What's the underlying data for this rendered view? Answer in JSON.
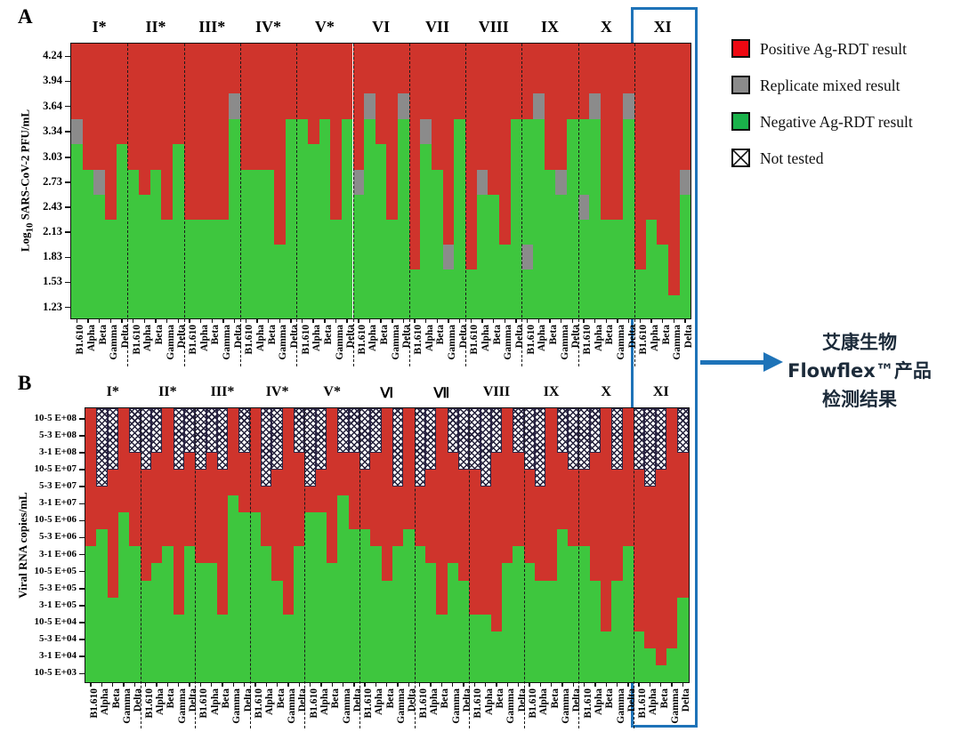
{
  "colors": {
    "positive_red": "#cf342c",
    "legend_red": "#ee0812",
    "mixed_gray": "#8b8b8b",
    "negative_green": "#3ec63e",
    "legend_green": "#1ab24b",
    "hatch_line": "#23203a",
    "highlight_blue": "#1e73b8",
    "annotation_text": "#1c2b3a"
  },
  "legend": {
    "items": [
      {
        "label": "Positive Ag-RDT result",
        "swatch": "red"
      },
      {
        "label": "Replicate mixed result",
        "swatch": "gray"
      },
      {
        "label": "Negative Ag-RDT result",
        "swatch": "green"
      },
      {
        "label": "Not tested",
        "swatch": "hatch"
      }
    ]
  },
  "annotation": {
    "lines": [
      "艾康生物",
      "Flowflex™产品",
      "检测结果"
    ],
    "arrow_color": "#1e73b8",
    "box_color": "#1e73b8"
  },
  "chart_data": [
    {
      "type": "bar",
      "subtype": "stacked-result-matrix",
      "panel_label": "A",
      "ylabel_prefix": "Log",
      "ylabel_sub": "10",
      "ylabel_suffix": " SARS-CoV-2 PFU/mL",
      "y_ticks": [
        "4.24",
        "3.94",
        "3.64",
        "3.34",
        "3.03",
        "2.73",
        "2.43",
        "2.13",
        "1.83",
        "1.53",
        "1.23"
      ],
      "y_tick_values": [
        4.24,
        3.94,
        3.64,
        3.34,
        3.03,
        2.73,
        2.43,
        2.13,
        1.83,
        1.53,
        1.23
      ],
      "ylim": [
        1.1,
        4.39
      ],
      "groups": [
        "I*",
        "II*",
        "III*",
        "IV*",
        "V*",
        "VI",
        "VII",
        "VIII",
        "IX",
        "X",
        "XI"
      ],
      "variants": [
        "B1.610",
        "Alpha",
        "Beta",
        "Gamma",
        "Delta"
      ],
      "legend_position": "upper right outside",
      "grid": false,
      "bars_note": "green_to = top of negative(green) zone in log10 PFU/mL; gray = [lo,hi] replicate-mixed zone; red fills above to plot top",
      "bars": [
        [
          {
            "green_to": 3.19,
            "gray": [
              3.19,
              3.49
            ]
          },
          {
            "green_to": 2.88
          },
          {
            "green_to": 2.58,
            "gray": [
              2.58,
              2.88
            ]
          },
          {
            "green_to": 2.28
          },
          {
            "green_to": 3.19
          }
        ],
        [
          {
            "green_to": 2.88
          },
          {
            "green_to": 2.58
          },
          {
            "green_to": 2.88
          },
          {
            "green_to": 2.28
          },
          {
            "green_to": 3.19
          }
        ],
        [
          {
            "green_to": 2.28
          },
          {
            "green_to": 2.28
          },
          {
            "green_to": 2.28
          },
          {
            "green_to": 2.28
          },
          {
            "green_to": 3.49,
            "gray": [
              3.49,
              3.79
            ]
          }
        ],
        [
          {
            "green_to": 2.88
          },
          {
            "green_to": 2.88
          },
          {
            "green_to": 2.88
          },
          {
            "green_to": 1.98
          },
          {
            "green_to": 3.49
          }
        ],
        [
          {
            "green_to": 3.49
          },
          {
            "green_to": 3.19
          },
          {
            "green_to": 3.49
          },
          {
            "green_to": 2.28
          },
          {
            "green_to": 3.49
          }
        ],
        [
          {
            "green_to": 2.58,
            "gray": [
              2.58,
              2.88
            ]
          },
          {
            "green_to": 3.49,
            "gray": [
              3.49,
              3.79
            ]
          },
          {
            "green_to": 3.19
          },
          {
            "green_to": 2.28
          },
          {
            "green_to": 3.49,
            "gray": [
              3.49,
              3.79
            ]
          }
        ],
        [
          {
            "green_to": 1.68
          },
          {
            "green_to": 3.19,
            "gray": [
              3.19,
              3.49
            ]
          },
          {
            "green_to": 2.88
          },
          {
            "green_to": 1.68,
            "gray": [
              1.68,
              1.98
            ]
          },
          {
            "green_to": 3.49
          }
        ],
        [
          {
            "green_to": 1.68
          },
          {
            "green_to": 2.58,
            "gray": [
              2.58,
              2.88
            ]
          },
          {
            "green_to": 2.58
          },
          {
            "green_to": 1.98
          },
          {
            "green_to": 3.49
          }
        ],
        [
          {
            "green_to": 3.49,
            "gray": [
              1.68,
              1.98
            ]
          },
          {
            "green_to": 3.49,
            "gray": [
              3.49,
              3.79
            ]
          },
          {
            "green_to": 2.88
          },
          {
            "green_to": 2.58,
            "gray": [
              2.58,
              2.88
            ]
          },
          {
            "green_to": 3.49
          }
        ],
        [
          {
            "green_to": 3.49,
            "gray": [
              2.28,
              2.58
            ]
          },
          {
            "green_to": 3.49,
            "gray": [
              3.49,
              3.79
            ]
          },
          {
            "green_to": 2.28
          },
          {
            "green_to": 2.28
          },
          {
            "green_to": 3.49,
            "gray": [
              3.49,
              3.79
            ]
          }
        ],
        [
          {
            "green_to": 1.68
          },
          {
            "green_to": 2.28
          },
          {
            "green_to": 1.98
          },
          {
            "green_to": 1.38
          },
          {
            "green_to": 2.58,
            "gray": [
              2.58,
              2.88
            ]
          }
        ]
      ]
    },
    {
      "type": "bar",
      "subtype": "stacked-result-matrix",
      "panel_label": "B",
      "ylabel": "Viral RNA copies/mL",
      "y_ticks": [
        "10-5 E+08",
        "5-3 E+08",
        "3-1 E+08",
        "10-5 E+07",
        "5-3 E+07",
        "3-1 E+07",
        "10-5 E+06",
        "5-3 E+06",
        "3-1 E+06",
        "10-5 E+05",
        "5-3 E+05",
        "3-1 E+05",
        "10-5 E+04",
        "5-3 E+04",
        "3-1 E+04",
        "10-5 E+03"
      ],
      "groups": [
        "I*",
        "II*",
        "III*",
        "IV*",
        "V*",
        "Ⅵ",
        "Ⅶ",
        "VIII",
        "IX",
        "X",
        "XI"
      ],
      "variants": [
        "B1.610",
        "Alpha",
        "Beta",
        "Gamma",
        "Delta"
      ],
      "grid": false,
      "bars_note": "hatch = number of top concentration levels not tested; green_from = index (0-15, top to bottom tick list) of first negative(green) level; red fills between",
      "bars": [
        [
          {
            "hatch": 0,
            "green_from": 8
          },
          {
            "hatch": 5,
            "green_from": 7
          },
          {
            "hatch": 4,
            "green_from": 11
          },
          {
            "hatch": 0,
            "green_from": 6
          },
          {
            "hatch": 3,
            "green_from": 8
          }
        ],
        [
          {
            "hatch": 4,
            "green_from": 10
          },
          {
            "hatch": 3,
            "green_from": 9
          },
          {
            "hatch": 0,
            "green_from": 8
          },
          {
            "hatch": 4,
            "green_from": 12
          },
          {
            "hatch": 3,
            "green_from": 8
          }
        ],
        [
          {
            "hatch": 4,
            "green_from": 9
          },
          {
            "hatch": 3,
            "green_from": 9
          },
          {
            "hatch": 4,
            "green_from": 12
          },
          {
            "hatch": 0,
            "green_from": 5
          },
          {
            "hatch": 3,
            "green_from": 6
          }
        ],
        [
          {
            "hatch": 0,
            "green_from": 6
          },
          {
            "hatch": 5,
            "green_from": 8
          },
          {
            "hatch": 4,
            "green_from": 10
          },
          {
            "hatch": 0,
            "green_from": 12
          },
          {
            "hatch": 3,
            "green_from": 8
          }
        ],
        [
          {
            "hatch": 5,
            "green_from": 6
          },
          {
            "hatch": 4,
            "green_from": 6
          },
          {
            "hatch": 0,
            "green_from": 9
          },
          {
            "hatch": 3,
            "green_from": 5
          },
          {
            "hatch": 3,
            "green_from": 7
          }
        ],
        [
          {
            "hatch": 4,
            "green_from": 7
          },
          {
            "hatch": 3,
            "green_from": 8
          },
          {
            "hatch": 0,
            "green_from": 10
          },
          {
            "hatch": 5,
            "green_from": 8
          },
          {
            "hatch": 0,
            "green_from": 7
          }
        ],
        [
          {
            "hatch": 5,
            "green_from": 8
          },
          {
            "hatch": 4,
            "green_from": 9
          },
          {
            "hatch": 0,
            "green_from": 12
          },
          {
            "hatch": 3,
            "green_from": 9
          },
          {
            "hatch": 4,
            "green_from": 10
          }
        ],
        [
          {
            "hatch": 4,
            "green_from": 12
          },
          {
            "hatch": 5,
            "green_from": 12
          },
          {
            "hatch": 3,
            "green_from": 13
          },
          {
            "hatch": 0,
            "green_from": 9
          },
          {
            "hatch": 3,
            "green_from": 8
          }
        ],
        [
          {
            "hatch": 4,
            "green_from": 9
          },
          {
            "hatch": 5,
            "green_from": 10
          },
          {
            "hatch": 0,
            "green_from": 10
          },
          {
            "hatch": 3,
            "green_from": 7
          },
          {
            "hatch": 4,
            "green_from": 8
          }
        ],
        [
          {
            "hatch": 4,
            "green_from": 8
          },
          {
            "hatch": 3,
            "green_from": 10
          },
          {
            "hatch": 0,
            "green_from": 13
          },
          {
            "hatch": 4,
            "green_from": 10
          },
          {
            "hatch": 0,
            "green_from": 8
          }
        ],
        [
          {
            "hatch": 4,
            "green_from": 13
          },
          {
            "hatch": 5,
            "green_from": 14
          },
          {
            "hatch": 4,
            "green_from": 15
          },
          {
            "hatch": 0,
            "green_from": 14
          },
          {
            "hatch": 3,
            "green_from": 11
          }
        ]
      ]
    }
  ]
}
